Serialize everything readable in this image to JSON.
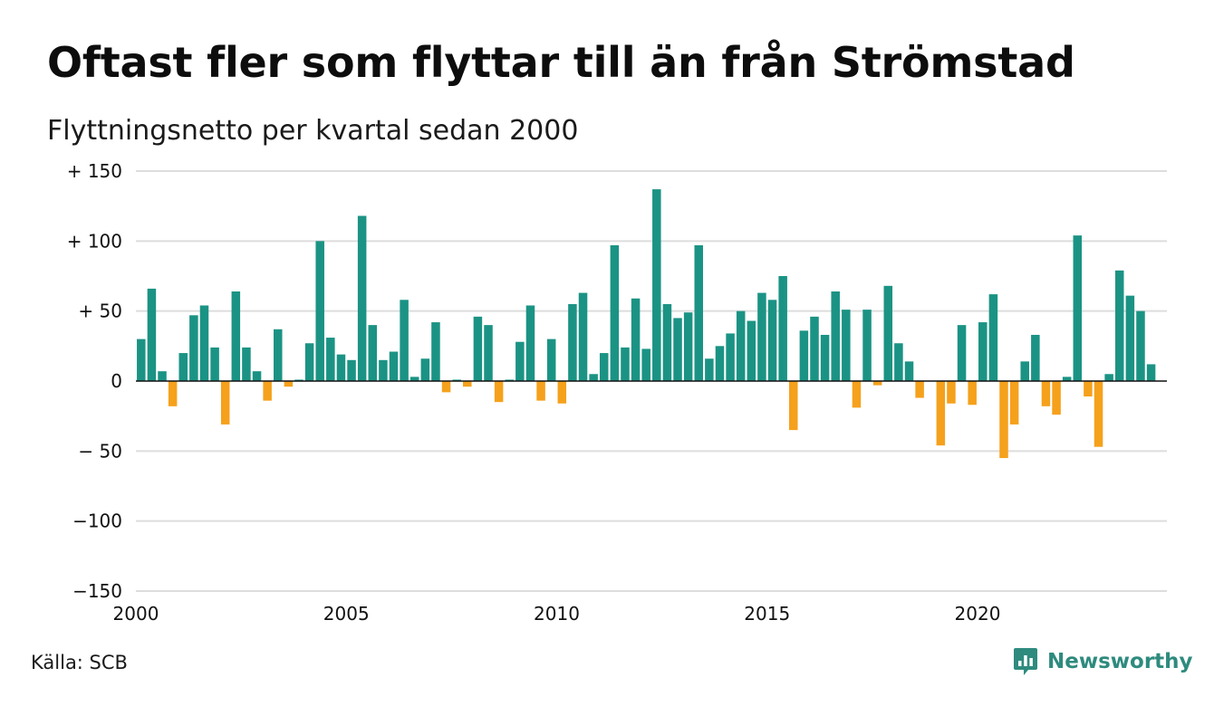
{
  "title": "Oftast fler som flyttar till än från Strömstad",
  "subtitle": "Flyttningsnetto per kvartal sedan 2000",
  "source": "Källa: SCB",
  "brand": {
    "name": "Newsworthy",
    "icon": "newsworthy-logo-icon",
    "color": "#2e8b7e"
  },
  "colors": {
    "positive": "#1b9384",
    "negative": "#f5a11c",
    "grid": "#dddddd",
    "axis": "#111111"
  },
  "chart_data": {
    "type": "bar",
    "title": "Oftast fler som flyttar till än från Strömstad",
    "subtitle": "Flyttningsnetto per kvartal sedan 2000",
    "xlabel": "",
    "ylabel": "",
    "ylim": [
      -150,
      150
    ],
    "xlim": [
      2000,
      2024.5
    ],
    "grid": true,
    "legend": "none",
    "x_ticks": [
      2000,
      2005,
      2010,
      2015,
      2020
    ],
    "x_tick_labels": [
      "2000",
      "2005",
      "2010",
      "2015",
      "2020"
    ],
    "y_ticks": [
      150,
      100,
      50,
      0,
      -50,
      -100,
      -150
    ],
    "y_tick_labels": [
      "+ 150",
      "+ 100",
      "+  50",
      "0",
      "− 50",
      "−100",
      "−150"
    ],
    "categories": [
      "2000 K1",
      "2000 K2",
      "2000 K3",
      "2000 K4",
      "2001 K1",
      "2001 K2",
      "2001 K3",
      "2001 K4",
      "2002 K1",
      "2002 K2",
      "2002 K3",
      "2002 K4",
      "2003 K1",
      "2003 K2",
      "2003 K3",
      "2003 K4",
      "2004 K1",
      "2004 K2",
      "2004 K3",
      "2004 K4",
      "2005 K1",
      "2005 K2",
      "2005 K3",
      "2005 K4",
      "2006 K1",
      "2006 K2",
      "2006 K3",
      "2006 K4",
      "2007 K1",
      "2007 K2",
      "2007 K3",
      "2007 K4",
      "2008 K1",
      "2008 K2",
      "2008 K3",
      "2008 K4",
      "2009 K1",
      "2009 K2",
      "2009 K3",
      "2009 K4",
      "2010 K1",
      "2010 K2",
      "2010 K3",
      "2010 K4",
      "2011 K1",
      "2011 K2",
      "2011 K3",
      "2011 K4",
      "2012 K1",
      "2012 K2",
      "2012 K3",
      "2012 K4",
      "2013 K1",
      "2013 K2",
      "2013 K3",
      "2013 K4",
      "2014 K1",
      "2014 K2",
      "2014 K3",
      "2014 K4",
      "2015 K1",
      "2015 K2",
      "2015 K3",
      "2015 K4",
      "2016 K1",
      "2016 K2",
      "2016 K3",
      "2016 K4",
      "2017 K1",
      "2017 K2",
      "2017 K3",
      "2017 K4",
      "2018 K1",
      "2018 K2",
      "2018 K3",
      "2018 K4",
      "2019 K1",
      "2019 K2",
      "2019 K3",
      "2019 K4",
      "2020 K1",
      "2020 K2",
      "2020 K3",
      "2020 K4",
      "2021 K1",
      "2021 K2",
      "2021 K3",
      "2021 K4",
      "2022 K1",
      "2022 K2",
      "2022 K3",
      "2022 K4",
      "2023 K1",
      "2023 K2",
      "2023 K3",
      "2023 K4",
      "2024 K1",
      "2024 K2"
    ],
    "values": [
      30,
      66,
      7,
      -18,
      20,
      47,
      54,
      24,
      -31,
      64,
      24,
      7,
      -14,
      37,
      -4,
      1,
      27,
      100,
      31,
      19,
      15,
      118,
      40,
      15,
      21,
      58,
      3,
      16,
      42,
      -8,
      1,
      -4,
      46,
      40,
      -15,
      1,
      28,
      54,
      -14,
      30,
      -16,
      55,
      63,
      5,
      20,
      97,
      24,
      59,
      23,
      137,
      55,
      45,
      49,
      97,
      16,
      25,
      34,
      50,
      43,
      63,
      58,
      75,
      -35,
      36,
      46,
      33,
      64,
      51,
      -19,
      51,
      -3,
      68,
      27,
      14,
      -12,
      0,
      -46,
      -16,
      40,
      -17,
      42,
      62,
      -55,
      -31,
      14,
      33,
      -18,
      -24,
      3,
      104,
      -11,
      -47,
      5,
      79,
      61,
      50,
      12,
      0
    ]
  }
}
